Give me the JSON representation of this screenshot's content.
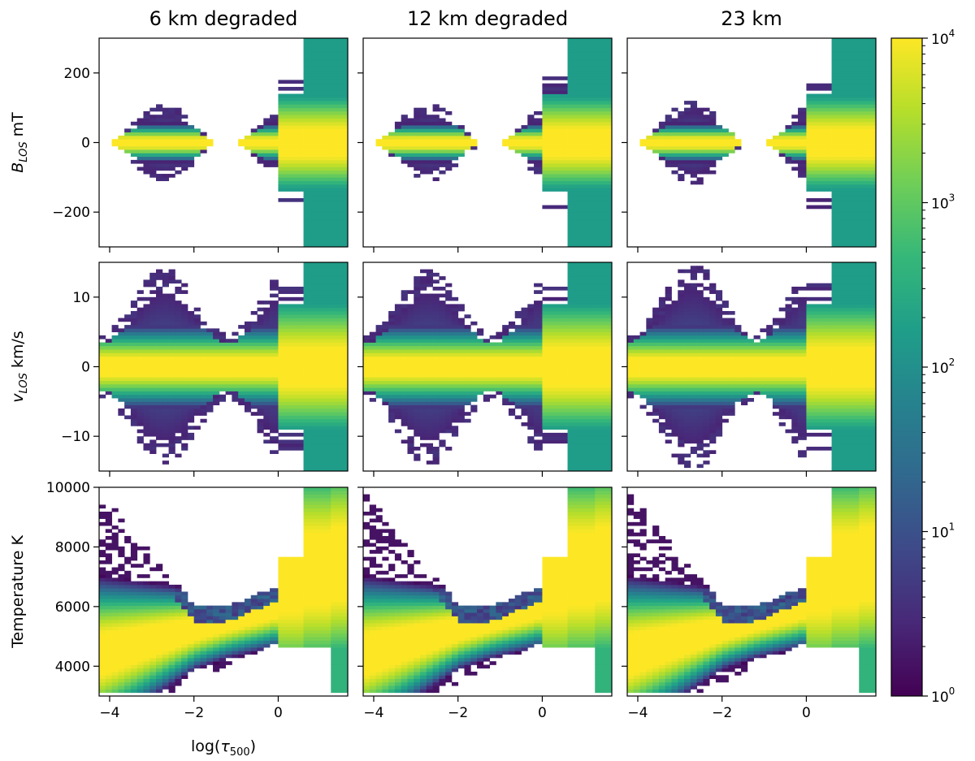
{
  "colormap": {
    "name": "viridis",
    "stops": [
      "#440154",
      "#482878",
      "#3e4989",
      "#31688e",
      "#26828e",
      "#1f9e89",
      "#35b779",
      "#6ece58",
      "#b5de2b",
      "#fde725"
    ]
  },
  "colorbar": {
    "scale": "log",
    "range": [
      1,
      10000
    ],
    "ticks": [
      {
        "value": 1,
        "base": "10",
        "exp": "0"
      },
      {
        "value": 10,
        "base": "10",
        "exp": "1"
      },
      {
        "value": 100,
        "base": "10",
        "exp": "2"
      },
      {
        "value": 1000,
        "base": "10",
        "exp": "3"
      },
      {
        "value": 10000,
        "base": "10",
        "exp": "4"
      }
    ]
  },
  "chart_data": {
    "type": "heatmap",
    "description_of_values": "2D histogram counts (log color scale) of inverted quantities vs optical depth",
    "columns": [
      {
        "id": "6km",
        "title": "6 km degraded"
      },
      {
        "id": "12km",
        "title": "12 km degraded"
      },
      {
        "id": "23km",
        "title": "23 km"
      }
    ],
    "x": {
      "label_main": "log(",
      "label_sym": "τ",
      "label_sub": "500",
      "label_close": ")",
      "range": [
        -4.25,
        1.65
      ],
      "ticks": [
        -4,
        -2,
        0
      ],
      "tick_labels": [
        "−4",
        "−2",
        "0"
      ],
      "column_edges": [
        -4.25,
        -4.1,
        -3.95,
        -3.8,
        -3.65,
        -3.5,
        -3.35,
        -3.2,
        -3.05,
        -2.9,
        -2.75,
        -2.6,
        -2.45,
        -2.3,
        -2.15,
        -2.0,
        -1.85,
        -1.7,
        -1.55,
        -1.4,
        -1.25,
        -1.1,
        -0.95,
        -0.8,
        -0.65,
        -0.5,
        -0.35,
        -0.2,
        0.0,
        0.6,
        1.25,
        1.65
      ]
    },
    "rows": [
      {
        "id": "blos",
        "label_sym": "B",
        "label_sub": "LOS",
        "label_unit": " mT",
        "range": [
          -300,
          300
        ],
        "ticks": [
          -200,
          0,
          200
        ],
        "tick_labels": [
          "−200",
          "0",
          "200"
        ],
        "core_center": 0,
        "core_width": 22,
        "envelope_base": 40,
        "envelope_amp": 45,
        "envelope_period": 3.0,
        "envelope_phase": -2.7,
        "deep_width": 140
      },
      {
        "id": "vlos",
        "label_sym": "v",
        "label_sub": "LOS",
        "label_unit": " km/s",
        "range": [
          -15,
          15
        ],
        "ticks": [
          -10,
          0,
          10
        ],
        "tick_labels": [
          "−10",
          "0",
          "10"
        ],
        "core_center": 0,
        "core_width": 2.4,
        "envelope_base": 7.0,
        "envelope_amp": 3.5,
        "envelope_period": 3.0,
        "envelope_phase": -2.7,
        "deep_width": 9
      },
      {
        "id": "temp",
        "label_sym": "",
        "label_sub": "",
        "label_unit": "Temperature K",
        "range": [
          3000,
          10000
        ],
        "ticks": [
          4000,
          6000,
          8000,
          10000
        ],
        "tick_labels": [
          "4000",
          "6000",
          "8000",
          "10000"
        ]
      }
    ]
  }
}
